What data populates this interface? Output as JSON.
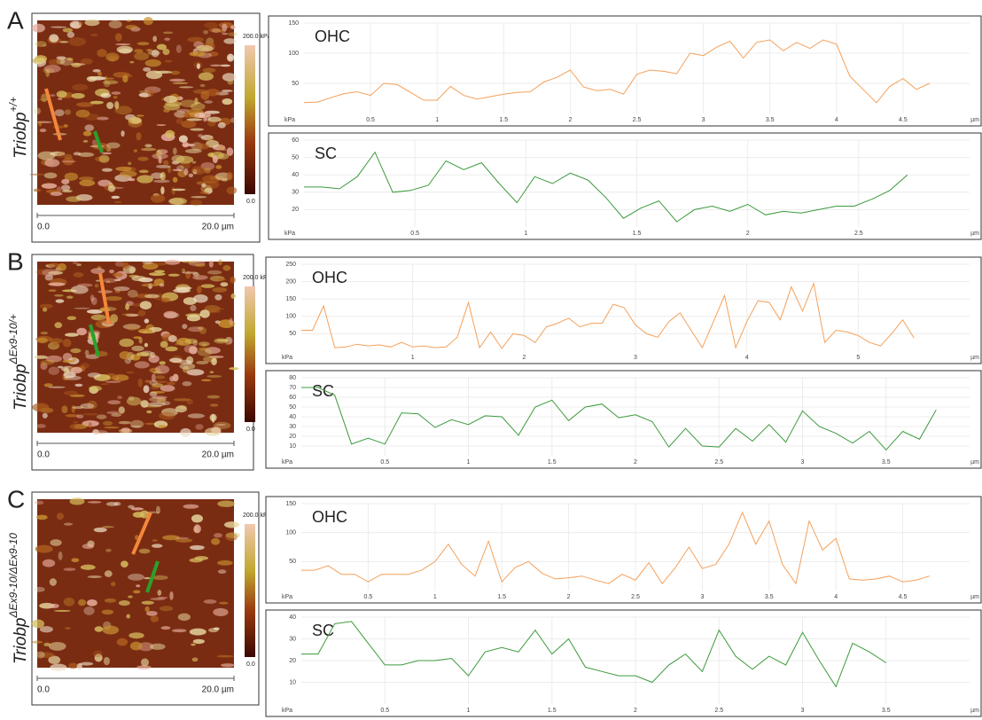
{
  "panels": [
    {
      "label": "A",
      "gene": "Triobp",
      "allele": "+/+",
      "scale_start": "0.0",
      "scale_end": "20.0 µm",
      "colorbar_max": "200.0 kPa",
      "colorbar_min": "0.0"
    },
    {
      "label": "B",
      "gene": "Triobp",
      "allele": "ΔEx9-10/+",
      "scale_start": "0.0",
      "scale_end": "20.0 µm",
      "colorbar_max": "200.0 kPa",
      "colorbar_min": "0.0"
    },
    {
      "label": "C",
      "gene": "Triobp",
      "allele": "ΔEx9-10/ΔEx9-10",
      "scale_start": "0.0",
      "scale_end": "20.0 µm",
      "colorbar_max": "200.0 kPa",
      "colorbar_min": "0.0"
    }
  ],
  "chart_data": [
    {
      "type": "line",
      "title": "OHC",
      "x_label": "µm",
      "y_label": "kPa",
      "color": "#f4a05a",
      "grid": true,
      "x": [
        0,
        0.1,
        0.2,
        0.3,
        0.4,
        0.5,
        0.6,
        0.7,
        0.8,
        0.9,
        1,
        1.1,
        1.2,
        1.3,
        1.4,
        1.5,
        1.6,
        1.7,
        1.8,
        1.9,
        2,
        2.1,
        2.2,
        2.3,
        2.4,
        2.5,
        2.6,
        2.7,
        2.8,
        2.9,
        3,
        3.1,
        3.2,
        3.3,
        3.4,
        3.5,
        3.6,
        3.7,
        3.8,
        3.9,
        4,
        4.1,
        4.2,
        4.3,
        4.4,
        4.5,
        4.6,
        4.7
      ],
      "values": [
        18,
        19,
        26,
        33,
        36,
        30,
        50,
        48,
        35,
        22,
        22,
        45,
        30,
        24,
        28,
        32,
        35,
        36,
        52,
        60,
        72,
        44,
        38,
        40,
        32,
        65,
        72,
        70,
        66,
        100,
        96,
        110,
        120,
        92,
        118,
        122,
        104,
        118,
        108,
        122,
        115,
        62,
        40,
        18,
        45,
        58,
        40,
        50
      ],
      "xlim": [
        0,
        5
      ],
      "ylim": [
        0,
        150
      ],
      "xticks": [
        0.5,
        1,
        1.5,
        2,
        2.5,
        3,
        3.5,
        4,
        4.5
      ],
      "yticks": [
        50,
        100,
        150
      ]
    },
    {
      "type": "line",
      "title": "SC",
      "x_label": "µm",
      "y_label": "kPa",
      "color": "#3c9a3c",
      "grid": true,
      "x": [
        0,
        0.08,
        0.16,
        0.24,
        0.32,
        0.4,
        0.48,
        0.56,
        0.64,
        0.72,
        0.8,
        0.88,
        0.96,
        1.04,
        1.12,
        1.2,
        1.28,
        1.36,
        1.44,
        1.52,
        1.6,
        1.68,
        1.76,
        1.84,
        1.92,
        2,
        2.08,
        2.16,
        2.24,
        2.32,
        2.4,
        2.48,
        2.56,
        2.64,
        2.72
      ],
      "values": [
        33,
        33,
        32,
        39,
        53,
        30,
        31,
        34,
        48,
        43,
        47,
        35,
        24,
        39,
        35,
        41,
        37,
        27,
        15,
        21,
        25,
        13,
        20,
        22,
        19,
        23,
        17,
        19,
        18,
        20,
        22,
        22,
        26,
        31,
        40
      ],
      "xlim": [
        0,
        3
      ],
      "ylim": [
        10,
        60
      ],
      "xticks": [
        0.5,
        1,
        1.5,
        2,
        2.5
      ],
      "yticks": [
        20,
        30,
        40,
        50,
        60
      ]
    },
    {
      "type": "line",
      "title": "OHC",
      "x_label": "µm",
      "y_label": "kPa",
      "color": "#f4a05a",
      "grid": true,
      "x": [
        0,
        0.1,
        0.2,
        0.3,
        0.4,
        0.5,
        0.6,
        0.7,
        0.8,
        0.9,
        1,
        1.1,
        1.2,
        1.3,
        1.4,
        1.5,
        1.6,
        1.7,
        1.8,
        1.9,
        2,
        2.1,
        2.2,
        2.3,
        2.4,
        2.5,
        2.6,
        2.7,
        2.8,
        2.9,
        3,
        3.1,
        3.2,
        3.3,
        3.4,
        3.5,
        3.6,
        3.7,
        3.8,
        3.9,
        4,
        4.1,
        4.2,
        4.3,
        4.4,
        4.5,
        4.6,
        4.7,
        4.8,
        4.9,
        5,
        5.1,
        5.2,
        5.3,
        5.4,
        5.5
      ],
      "values": [
        60,
        60,
        130,
        10,
        12,
        20,
        15,
        18,
        12,
        25,
        12,
        15,
        10,
        12,
        40,
        140,
        10,
        55,
        8,
        50,
        45,
        25,
        70,
        80,
        95,
        70,
        80,
        80,
        135,
        125,
        75,
        50,
        40,
        85,
        110,
        60,
        10,
        85,
        160,
        10,
        85,
        145,
        140,
        90,
        185,
        115,
        195,
        25,
        60,
        55,
        45,
        25,
        15,
        50,
        90,
        38
      ],
      "xlim": [
        0,
        6
      ],
      "ylim": [
        0,
        250
      ],
      "xticks": [
        1,
        2,
        3,
        4,
        5
      ],
      "yticks": [
        50,
        100,
        150,
        200,
        250
      ]
    },
    {
      "type": "line",
      "title": "SC",
      "x_label": "µm",
      "y_label": "kPa",
      "color": "#3c9a3c",
      "grid": true,
      "x": [
        0,
        0.1,
        0.2,
        0.3,
        0.4,
        0.5,
        0.6,
        0.7,
        0.8,
        0.9,
        1,
        1.1,
        1.2,
        1.3,
        1.4,
        1.5,
        1.6,
        1.7,
        1.8,
        1.9,
        2,
        2.1,
        2.2,
        2.3,
        2.4,
        2.5,
        2.6,
        2.7,
        2.8,
        2.9,
        3,
        3.1,
        3.2,
        3.3,
        3.4,
        3.5,
        3.6,
        3.7,
        3.8
      ],
      "values": [
        70,
        70,
        62,
        12,
        18,
        12,
        44,
        43,
        29,
        37,
        32,
        41,
        40,
        21,
        50,
        57,
        36,
        50,
        53,
        39,
        42,
        35,
        9,
        28,
        10,
        9,
        28,
        15,
        32,
        14,
        46,
        30,
        23,
        13,
        25,
        6,
        25,
        17,
        47
      ],
      "xlim": [
        0,
        4
      ],
      "ylim": [
        0,
        80
      ],
      "xticks": [
        0.5,
        1,
        1.5,
        2,
        2.5,
        3,
        3.5
      ],
      "yticks": [
        10,
        20,
        30,
        40,
        50,
        60,
        70,
        80
      ]
    },
    {
      "type": "line",
      "title": "OHC",
      "x_label": "µm",
      "y_label": "kPa",
      "color": "#f4a05a",
      "grid": true,
      "x": [
        0,
        0.1,
        0.2,
        0.3,
        0.4,
        0.5,
        0.6,
        0.7,
        0.8,
        0.9,
        1,
        1.1,
        1.2,
        1.3,
        1.4,
        1.5,
        1.6,
        1.7,
        1.8,
        1.9,
        2,
        2.1,
        2.2,
        2.3,
        2.4,
        2.5,
        2.6,
        2.7,
        2.8,
        2.9,
        3,
        3.1,
        3.2,
        3.3,
        3.4,
        3.5,
        3.6,
        3.7,
        3.8,
        3.9,
        4,
        4.1,
        4.2,
        4.3,
        4.4,
        4.5,
        4.6,
        4.7
      ],
      "values": [
        35,
        35,
        43,
        28,
        28,
        15,
        28,
        28,
        28,
        35,
        50,
        80,
        45,
        25,
        85,
        15,
        40,
        50,
        30,
        20,
        22,
        25,
        18,
        12,
        28,
        18,
        48,
        12,
        40,
        75,
        38,
        45,
        80,
        135,
        80,
        120,
        45,
        12,
        120,
        70,
        90,
        20,
        18,
        20,
        25,
        15,
        18,
        25
      ],
      "xlim": [
        0,
        5
      ],
      "ylim": [
        0,
        150
      ],
      "xticks": [
        0.5,
        1,
        1.5,
        2,
        2.5,
        3,
        3.5,
        4,
        4.5
      ],
      "yticks": [
        50,
        100,
        150
      ]
    },
    {
      "type": "line",
      "title": "SC",
      "x_label": "µm",
      "y_label": "kPa",
      "color": "#3c9a3c",
      "grid": true,
      "x": [
        0,
        0.1,
        0.2,
        0.3,
        0.4,
        0.5,
        0.6,
        0.7,
        0.8,
        0.9,
        1,
        1.1,
        1.2,
        1.3,
        1.4,
        1.5,
        1.6,
        1.7,
        1.8,
        1.9,
        2,
        2.1,
        2.2,
        2.3,
        2.4,
        2.5,
        2.6,
        2.7,
        2.8,
        2.9,
        3,
        3.1,
        3.2,
        3.3,
        3.4,
        3.5
      ],
      "values": [
        23,
        23,
        37,
        38,
        28,
        18,
        18,
        20,
        20,
        21,
        13,
        24,
        26,
        24,
        34,
        23,
        30,
        17,
        15,
        13,
        13,
        10,
        18,
        23,
        15,
        34,
        22,
        16,
        22,
        18,
        33,
        20,
        8,
        28,
        24,
        19
      ],
      "xlim": [
        0,
        4
      ],
      "ylim": [
        0,
        40
      ],
      "xticks": [
        0.5,
        1,
        1.5,
        2,
        2.5,
        3,
        3.5
      ],
      "yticks": [
        10,
        20,
        30,
        40
      ]
    }
  ]
}
